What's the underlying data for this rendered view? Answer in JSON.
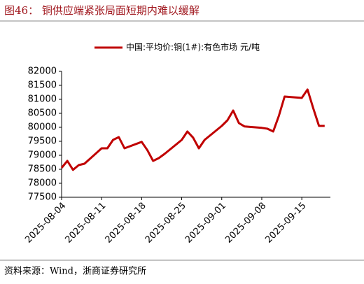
{
  "chart_data": {
    "type": "line",
    "title": "图46：  铜供应端紧张局面短期内难以缓解",
    "source": "资料来源：Wind，浙商证券研究所",
    "x": [
      "2025-08-04",
      "2025-08-05",
      "2025-08-06",
      "2025-08-07",
      "2025-08-08",
      "2025-08-11",
      "2025-08-12",
      "2025-08-13",
      "2025-08-14",
      "2025-08-15",
      "2025-08-18",
      "2025-08-19",
      "2025-08-20",
      "2025-08-21",
      "2025-08-22",
      "2025-08-25",
      "2025-08-26",
      "2025-08-27",
      "2025-08-28",
      "2025-08-29",
      "2025-09-01",
      "2025-09-02",
      "2025-09-03",
      "2025-09-04",
      "2025-09-05",
      "2025-09-08",
      "2025-09-09",
      "2025-09-10",
      "2025-09-11",
      "2025-09-12",
      "2025-09-15",
      "2025-09-16",
      "2025-09-17",
      "2025-09-18",
      "2025-09-19"
    ],
    "series": [
      {
        "name": "中国:平均价:铜(1#):有色市场 元/吨",
        "color": "#c00000",
        "values": [
          78550,
          78800,
          78480,
          78650,
          78700,
          79250,
          79250,
          79550,
          79650,
          79250,
          79480,
          79180,
          78800,
          78900,
          79050,
          79550,
          79850,
          79630,
          79250,
          79550,
          80050,
          80250,
          80600,
          80150,
          80030,
          79980,
          79950,
          79850,
          80420,
          81100,
          81050,
          81350,
          80680,
          80050,
          80050
        ]
      }
    ],
    "xlim": [
      "2025-08-04",
      "2025-09-20"
    ],
    "xticks": [
      "2025-08-04",
      "2025-08-11",
      "2025-08-18",
      "2025-08-25",
      "2025-09-01",
      "2025-09-08",
      "2025-09-15"
    ],
    "ylim": [
      77500,
      82000
    ],
    "yticks": [
      77500,
      78000,
      78500,
      79000,
      79500,
      80000,
      80500,
      81000,
      81500,
      82000
    ],
    "grid": false,
    "legend": "top"
  }
}
